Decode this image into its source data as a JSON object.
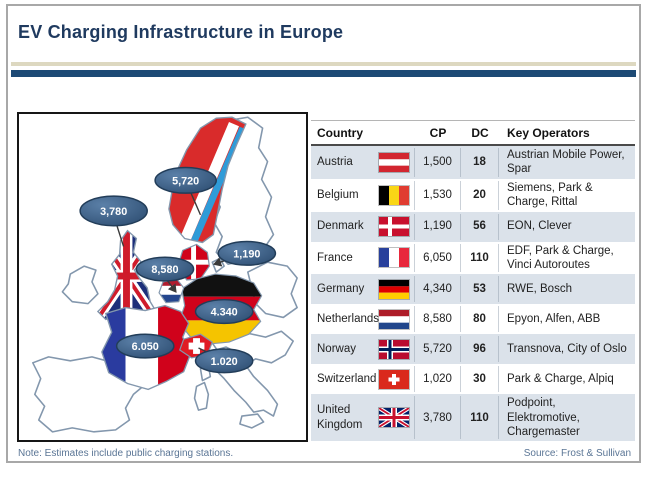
{
  "header": {
    "title": "EV Charging Infrastructure in Europe"
  },
  "colors": {
    "navy": "#1f3a5f",
    "bar": "#1d4a75",
    "beige": "#ddd8c0",
    "row_alt": "#dbe2ea",
    "map_outline": "#8397ad",
    "note": "#5a7595",
    "bubble_light": "#5b80a8",
    "bubble_dark": "#2e4e72"
  },
  "map": {
    "bubbles": [
      {
        "label": "3,780",
        "country": "United Kingdom"
      },
      {
        "label": "5,720",
        "country": "Norway"
      },
      {
        "label": "1,190",
        "country": "Denmark"
      },
      {
        "label": "8,580",
        "country": "Netherlands"
      },
      {
        "label": "4.340",
        "country": "Germany"
      },
      {
        "label": "6.050",
        "country": "France"
      },
      {
        "label": "1.020",
        "country": "Switzerland"
      }
    ]
  },
  "table": {
    "headers": [
      "Country",
      "CP",
      "DC",
      "Key Operators"
    ],
    "rows": [
      {
        "country": "Austria",
        "flag": "austria",
        "cp": "1,500",
        "dc": "18",
        "operators": "Austrian Mobile Power, Spar"
      },
      {
        "country": "Belgium",
        "flag": "belgium",
        "cp": "1,530",
        "dc": "20",
        "operators": "Siemens, Park & Charge, Rittal"
      },
      {
        "country": "Denmark",
        "flag": "denmark",
        "cp": "1,190",
        "dc": "56",
        "operators": "EON, Clever"
      },
      {
        "country": "France",
        "flag": "france",
        "cp": "6,050",
        "dc": "110",
        "operators": "EDF, Park & Charge, Vinci Autoroutes"
      },
      {
        "country": "Germany",
        "flag": "germany",
        "cp": "4,340",
        "dc": "53",
        "operators": "RWE, Bosch"
      },
      {
        "country": "Netherlands",
        "flag": "netherlands",
        "cp": "8,580",
        "dc": "80",
        "operators": "Epyon, Alfen, ABB"
      },
      {
        "country": "Norway",
        "flag": "norway",
        "cp": "5,720",
        "dc": "96",
        "operators": "Transnova, City of Oslo"
      },
      {
        "country": "Switzerland",
        "flag": "switzerland",
        "cp": "1,020",
        "dc": "30",
        "operators": "Park & Charge, Alpiq"
      },
      {
        "country": "United Kingdom",
        "flag": "uk",
        "cp": "3,780",
        "dc": "110",
        "operators": "Podpoint, Elektromotive, Chargemaster"
      }
    ]
  },
  "footer": {
    "note": "Note: Estimates include public charging stations.",
    "source": "Source: Frost & Sullivan"
  },
  "chart_data": {
    "type": "table",
    "title": "EV Charging Infrastructure in Europe",
    "columns": [
      "Country",
      "CP",
      "DC",
      "Key Operators"
    ],
    "rows": [
      [
        "Austria",
        1500,
        18,
        "Austrian Mobile Power, Spar"
      ],
      [
        "Belgium",
        1530,
        20,
        "Siemens, Park & Charge, Rittal"
      ],
      [
        "Denmark",
        1190,
        56,
        "EON, Clever"
      ],
      [
        "France",
        6050,
        110,
        "EDF, Park & Charge, Vinci Autoroutes"
      ],
      [
        "Germany",
        4340,
        53,
        "RWE, Bosch"
      ],
      [
        "Netherlands",
        8580,
        80,
        "Epyon, Alfen, ABB"
      ],
      [
        "Norway",
        5720,
        96,
        "Transnova, City of Oslo"
      ],
      [
        "Switzerland",
        1020,
        30,
        "Park & Charge, Alpiq"
      ],
      [
        "United Kingdom",
        3780,
        110,
        "Podpoint, Elektromotive, Chargemaster"
      ]
    ],
    "map_annotations": [
      {
        "country": "United Kingdom",
        "value_label": "3,780"
      },
      {
        "country": "Norway",
        "value_label": "5,720"
      },
      {
        "country": "Denmark",
        "value_label": "1,190"
      },
      {
        "country": "Netherlands",
        "value_label": "8,580"
      },
      {
        "country": "Germany",
        "value_label": "4.340"
      },
      {
        "country": "France",
        "value_label": "6.050"
      },
      {
        "country": "Switzerland",
        "value_label": "1.020"
      }
    ]
  }
}
